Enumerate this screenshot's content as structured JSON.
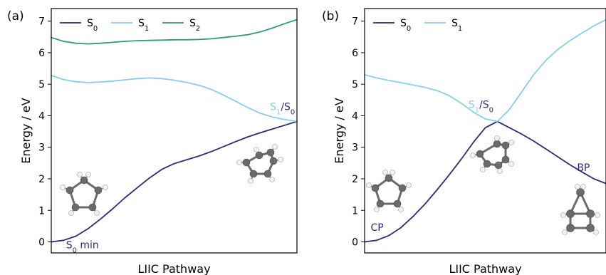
{
  "chart_data": [
    {
      "type": "line",
      "panel_label": "(a)",
      "xlabel": "LIIC Pathway",
      "ylabel": "Energy / eV",
      "xlim": [
        0,
        1
      ],
      "ylim": [
        -0.35,
        7.4
      ],
      "yticks": [
        0,
        1,
        2,
        3,
        4,
        5,
        6,
        7
      ],
      "grid": false,
      "legend": {
        "placement": "top-left",
        "orientation": "horizontal"
      },
      "series": [
        {
          "name": "S₀",
          "name_base": "S",
          "name_sub": "0",
          "color": "#2e2a7f",
          "x": [
            0,
            0.05,
            0.1,
            0.15,
            0.2,
            0.25,
            0.3,
            0.35,
            0.4,
            0.45,
            0.5,
            0.55,
            0.6,
            0.65,
            0.7,
            0.75,
            0.8,
            0.85,
            0.9,
            0.95,
            1.0
          ],
          "y": [
            0.0,
            0.05,
            0.18,
            0.42,
            0.72,
            1.05,
            1.4,
            1.72,
            2.03,
            2.3,
            2.48,
            2.6,
            2.72,
            2.86,
            3.02,
            3.18,
            3.33,
            3.46,
            3.58,
            3.7,
            3.82
          ]
        },
        {
          "name": "S₁",
          "name_base": "S",
          "name_sub": "1",
          "color": "#87ceeb",
          "x": [
            0,
            0.05,
            0.1,
            0.15,
            0.2,
            0.25,
            0.3,
            0.35,
            0.4,
            0.45,
            0.5,
            0.55,
            0.6,
            0.65,
            0.7,
            0.75,
            0.8,
            0.85,
            0.9,
            0.95,
            1.0
          ],
          "y": [
            5.28,
            5.15,
            5.08,
            5.05,
            5.07,
            5.1,
            5.14,
            5.18,
            5.2,
            5.18,
            5.13,
            5.06,
            4.97,
            4.84,
            4.66,
            4.46,
            4.26,
            4.08,
            3.96,
            3.88,
            3.82
          ]
        },
        {
          "name": "S₂",
          "name_base": "S",
          "name_sub": "2",
          "color": "#2e9a82",
          "x": [
            0,
            0.05,
            0.1,
            0.15,
            0.2,
            0.25,
            0.3,
            0.35,
            0.4,
            0.45,
            0.5,
            0.55,
            0.6,
            0.65,
            0.7,
            0.75,
            0.8,
            0.85,
            0.9,
            0.95,
            1.0
          ],
          "y": [
            6.48,
            6.36,
            6.3,
            6.28,
            6.3,
            6.33,
            6.36,
            6.38,
            6.39,
            6.4,
            6.41,
            6.41,
            6.42,
            6.44,
            6.48,
            6.52,
            6.57,
            6.66,
            6.78,
            6.92,
            7.05
          ]
        }
      ],
      "annotations": [
        {
          "text": "S₀ min",
          "base": "S",
          "sub": "0",
          "rest": " min",
          "color": "#2e2a7f",
          "x": 0.06,
          "y": -0.2
        },
        {
          "text": "S₁/S₀",
          "base": "S",
          "sub": "1",
          "rest": "/",
          "base2": "S",
          "sub2": "0",
          "color": "#87ceeb",
          "color2": "#2e2a7f",
          "x": 0.89,
          "y": 4.18
        }
      ]
    },
    {
      "type": "line",
      "panel_label": "(b)",
      "xlabel": "LIIC Pathway",
      "ylabel": "Energy / eV",
      "xlim": [
        0,
        1
      ],
      "ylim": [
        -0.35,
        7.4
      ],
      "yticks": [
        0,
        1,
        2,
        3,
        4,
        5,
        6,
        7
      ],
      "grid": false,
      "legend": {
        "placement": "top-left",
        "orientation": "horizontal"
      },
      "series": [
        {
          "name": "S₀",
          "name_base": "S",
          "name_sub": "0",
          "color": "#2e2a7f",
          "x": [
            0,
            0.05,
            0.1,
            0.15,
            0.2,
            0.25,
            0.3,
            0.35,
            0.4,
            0.45,
            0.5,
            0.55,
            0.6,
            0.65,
            0.7,
            0.75,
            0.8,
            0.85,
            0.9,
            0.95,
            1.0
          ],
          "y": [
            0.0,
            0.05,
            0.2,
            0.45,
            0.8,
            1.2,
            1.65,
            2.12,
            2.62,
            3.15,
            3.62,
            3.82,
            3.62,
            3.42,
            3.2,
            2.95,
            2.7,
            2.45,
            2.22,
            2.0,
            1.85
          ]
        },
        {
          "name": "S₁",
          "name_base": "S",
          "name_sub": "1",
          "color": "#87ceeb",
          "x": [
            0,
            0.05,
            0.1,
            0.15,
            0.2,
            0.25,
            0.3,
            0.35,
            0.4,
            0.45,
            0.5,
            0.55,
            0.6,
            0.65,
            0.7,
            0.75,
            0.8,
            0.85,
            0.9,
            0.95,
            1.0
          ],
          "y": [
            5.3,
            5.2,
            5.12,
            5.05,
            4.98,
            4.9,
            4.8,
            4.64,
            4.4,
            4.12,
            3.9,
            3.82,
            4.2,
            4.75,
            5.3,
            5.75,
            6.1,
            6.38,
            6.62,
            6.85,
            7.05
          ]
        }
      ],
      "annotations": [
        {
          "text": "CP",
          "plain": "CP",
          "color": "#2e2a7f",
          "x": 0.025,
          "y": 0.35
        },
        {
          "text": "S₁/S₀",
          "base": "S",
          "sub": "1",
          "rest": "/",
          "base2": "S",
          "sub2": "0",
          "color": "#87ceeb",
          "color2": "#2e2a7f",
          "x": 0.43,
          "y": 4.25
        },
        {
          "text": "BP",
          "plain": "BP",
          "color": "#2e2a7f",
          "x": 0.88,
          "y": 2.25
        }
      ]
    }
  ]
}
